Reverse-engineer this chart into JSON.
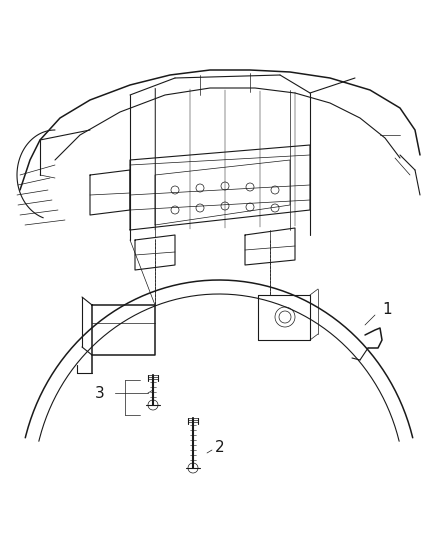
{
  "background_color": "#ffffff",
  "line_color": "#1a1a1a",
  "label_1": "1",
  "label_2": "2",
  "label_3": "3",
  "figsize": [
    4.38,
    5.33
  ],
  "dpi": 100,
  "lw_thin": 0.5,
  "lw_med": 0.8,
  "lw_thick": 1.1
}
